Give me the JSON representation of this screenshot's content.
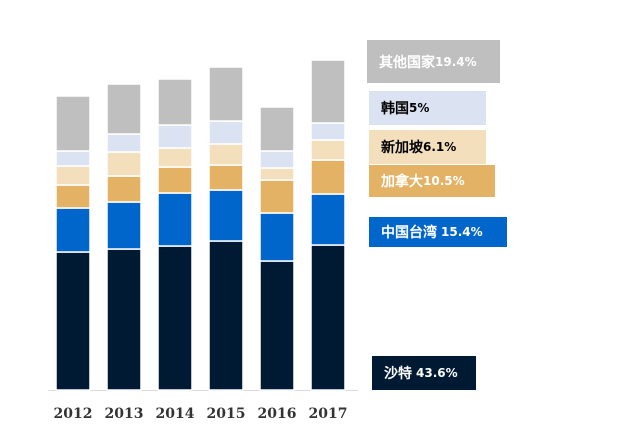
{
  "chart_data": {
    "type": "bar",
    "stacked": true,
    "categories": [
      "2012",
      "2013",
      "2014",
      "2015",
      "2016",
      "2017"
    ],
    "series": [
      {
        "name": "沙特",
        "share": "43.6%",
        "color": "#001a33",
        "label_color": "#ffffff",
        "values": [
          138,
          141,
          144,
          149,
          129,
          145
        ]
      },
      {
        "name": "中国台湾",
        "share": "15.4%",
        "color": "#0066cc",
        "label_color": "#ffffff",
        "values": [
          44,
          47,
          53,
          51,
          48,
          51
        ]
      },
      {
        "name": "加拿大",
        "share": "10.5%",
        "color": "#e3b265",
        "label_color": "#ffffff",
        "values": [
          23,
          26,
          26,
          25,
          33,
          34
        ]
      },
      {
        "name": "新加坡",
        "share": "6.1%",
        "color": "#f3dfbb",
        "label_color": "#000000",
        "values": [
          19,
          24,
          19,
          21,
          12,
          20
        ]
      },
      {
        "name": "韩国",
        "share": "5%",
        "color": "#dbe3f3",
        "label_color": "#000000",
        "values": [
          15,
          18,
          23,
          23,
          17,
          17
        ]
      },
      {
        "name": "其他国家",
        "share": "19.4%",
        "color": "#bfbfbf",
        "label_color": "#ffffff",
        "values": [
          55,
          50,
          46,
          54,
          44,
          63
        ]
      }
    ],
    "ylim": [
      0,
      340
    ],
    "title": "",
    "xlabel": "",
    "ylabel": "",
    "legend_position": "right"
  }
}
